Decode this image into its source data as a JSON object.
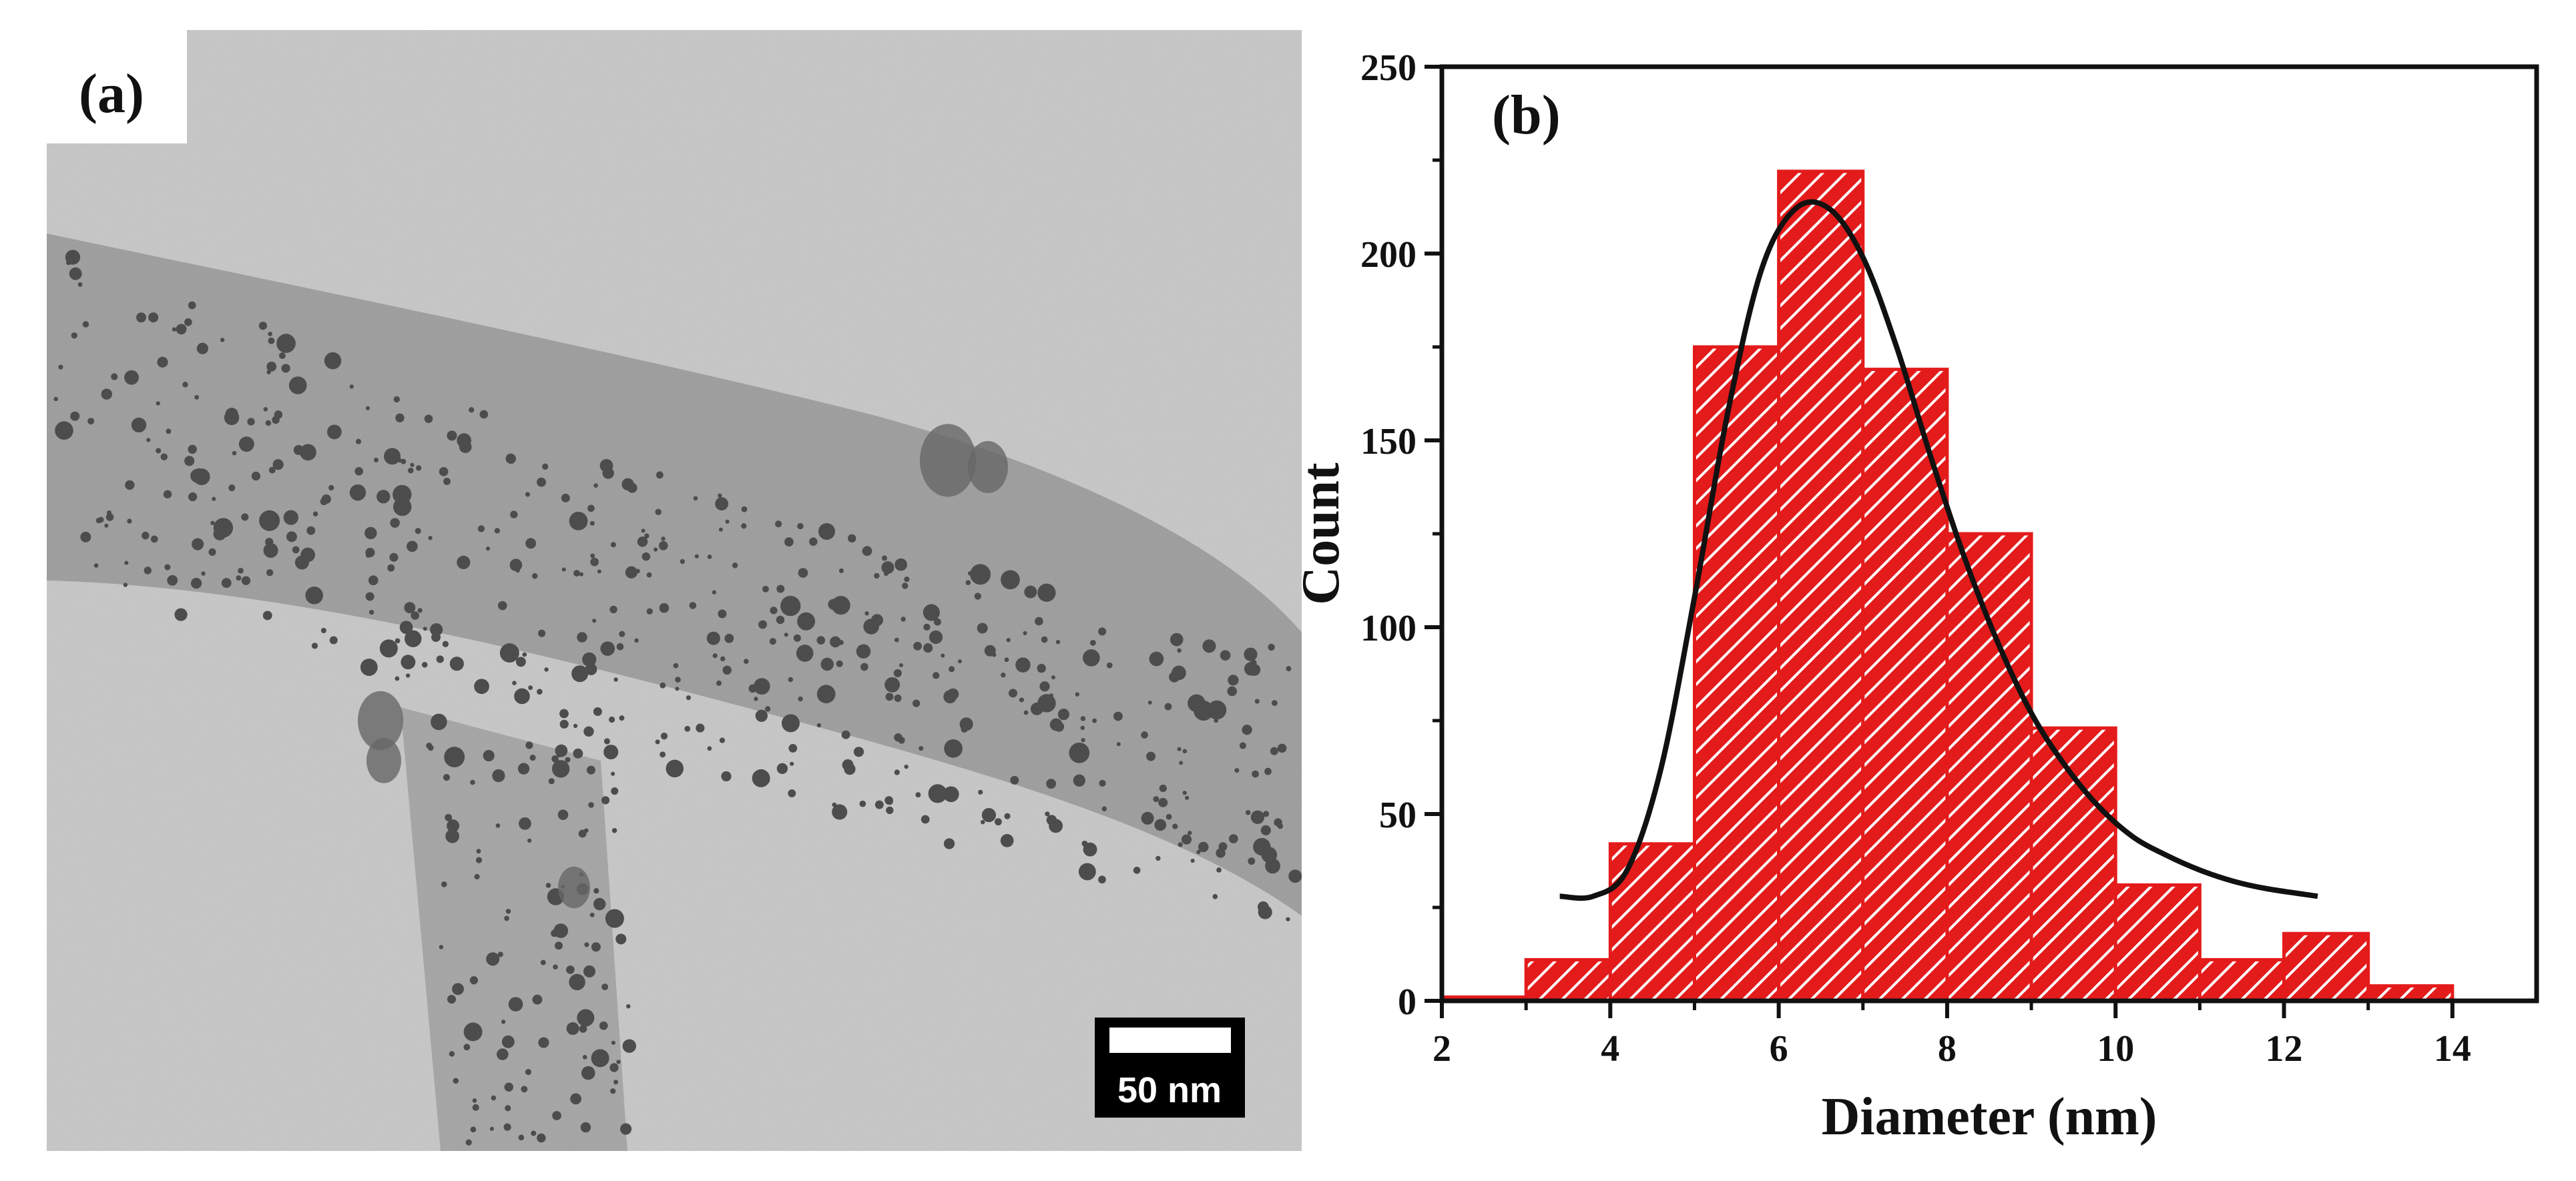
{
  "panel_a": {
    "label": "(a)",
    "scale_bar_label": "50 nm",
    "colors": {
      "background": "#c9c9c9",
      "fiber": "#8a8a8a",
      "particle": "#111111"
    }
  },
  "chart_data": {
    "type": "bar",
    "panel_label": "(b)",
    "title": "",
    "xlabel": "Diameter (nm)",
    "ylabel": "Count",
    "bin_edges": [
      2,
      3,
      4,
      5,
      6,
      7,
      8,
      9,
      10,
      11,
      12,
      13,
      14
    ],
    "values": [
      1,
      11,
      42,
      175,
      222,
      169,
      125,
      73,
      31,
      11,
      18,
      4
    ],
    "xlim": [
      2,
      15
    ],
    "ylim": [
      0,
      250
    ],
    "xticks": [
      2,
      4,
      6,
      8,
      10,
      12,
      14
    ],
    "yticks": [
      0,
      50,
      100,
      150,
      200,
      250
    ],
    "fit": {
      "type": "log-normal",
      "x": [
        3.4,
        3.8,
        4.2,
        4.6,
        5.0,
        5.4,
        5.8,
        6.2,
        6.6,
        7.0,
        7.4,
        7.8,
        8.2,
        8.6,
        9.0,
        9.4,
        9.8,
        10.2,
        10.6,
        11.0,
        11.4,
        11.8,
        12.4
      ],
      "y": [
        28,
        28,
        35,
        62,
        108,
        158,
        196,
        212,
        212,
        199,
        175,
        146,
        119,
        96,
        77,
        63,
        52,
        44,
        39,
        35,
        32,
        30,
        28
      ]
    },
    "colors": {
      "bar_fill": "#e41b1b",
      "bar_hatch": "#ffffff",
      "fit_line": "#111111"
    }
  }
}
